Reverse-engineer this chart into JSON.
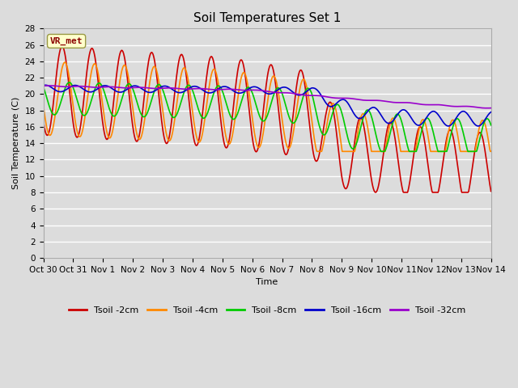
{
  "title": "Soil Temperatures Set 1",
  "xlabel": "Time",
  "ylabel": "Soil Temperature (C)",
  "ylim": [
    0,
    28
  ],
  "yticks": [
    0,
    2,
    4,
    6,
    8,
    10,
    12,
    14,
    16,
    18,
    20,
    22,
    24,
    26,
    28
  ],
  "x_labels": [
    "Oct 30",
    "Oct 31",
    "Nov 1",
    "Nov 2",
    "Nov 3",
    "Nov 4",
    "Nov 5",
    "Nov 6",
    "Nov 7",
    "Nov 8",
    "Nov 9",
    "Nov 10",
    "Nov 11",
    "Nov 12",
    "Nov 13",
    "Nov 14"
  ],
  "legend_labels": [
    "Tsoil -2cm",
    "Tsoil -4cm",
    "Tsoil -8cm",
    "Tsoil -16cm",
    "Tsoil -32cm"
  ],
  "line_colors": [
    "#cc0000",
    "#ff8800",
    "#00cc00",
    "#0000cc",
    "#9900cc"
  ],
  "annotation_text": "VR_met",
  "bg_color": "#dcdcdc",
  "plot_bg_color": "#dcdcdc",
  "grid_color": "#ffffff",
  "title_fontsize": 11,
  "axis_fontsize": 8,
  "tick_fontsize": 7.5,
  "n_days": 15,
  "pts_per_day": 48
}
